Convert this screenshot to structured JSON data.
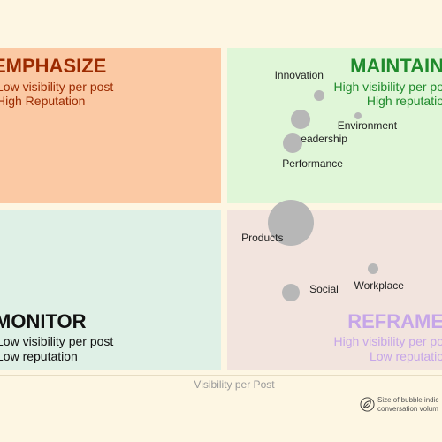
{
  "chart_data": {
    "type": "scatter",
    "xlabel": "Visibility per Post",
    "ylabel": "",
    "quadrants": [
      {
        "key": "emphasize",
        "title": "EMPHASIZE",
        "lines": [
          "Low visibility per post",
          "High Reputation"
        ],
        "color": "#9b2a00",
        "bg": "#fbc9a4"
      },
      {
        "key": "maintain",
        "title": "MAINTAIN",
        "lines": [
          "High visibility per po",
          "High reputatio"
        ],
        "color": "#1f8a2c",
        "bg": "#e0f6d8"
      },
      {
        "key": "monitor",
        "title": "MONITOR",
        "lines": [
          "Low visibility per post",
          "Low reputation"
        ],
        "color": "#111111",
        "bg": "#dff0e6"
      },
      {
        "key": "reframe",
        "title": "REFRAME",
        "lines": [
          "High visibility per po",
          "Low reputatio"
        ],
        "color": "#c6a6e8",
        "bg": "#f2e4de"
      }
    ],
    "points": [
      {
        "name": "Innovation",
        "x": 0.51,
        "y": 0.7,
        "size": 12
      },
      {
        "name": "Environment",
        "x": 0.72,
        "y": 0.57,
        "size": 8
      },
      {
        "name": "Leadership",
        "x": 0.41,
        "y": 0.55,
        "size": 22
      },
      {
        "name": "Performance",
        "x": 0.37,
        "y": 0.4,
        "size": 22
      },
      {
        "name": "Products",
        "x": 0.36,
        "y": -0.1,
        "size": 52
      },
      {
        "name": "Social",
        "x": 0.36,
        "y": -0.54,
        "size": 20
      },
      {
        "name": "Workplace",
        "x": 0.8,
        "y": -0.39,
        "size": 12
      }
    ],
    "size_note": [
      "Size of bubble indic",
      "conversation volum"
    ]
  },
  "colors": {
    "page_bg": "#fdf6e3",
    "bubble": "#b7b7b7"
  },
  "icons": {
    "size_note": "leaf-icon"
  }
}
